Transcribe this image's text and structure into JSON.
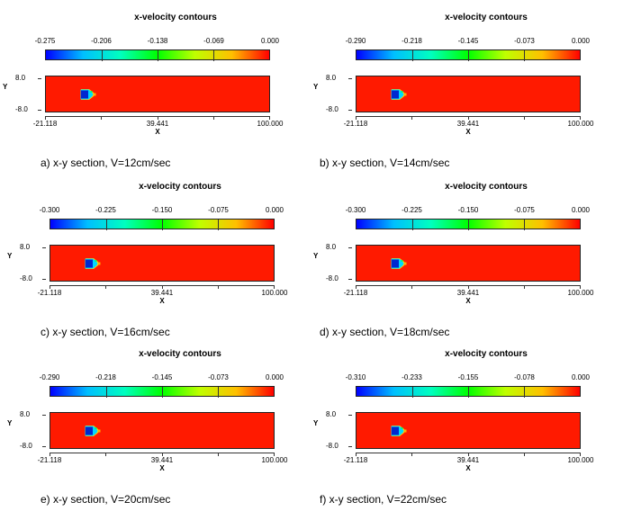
{
  "chart_data": [
    {
      "type": "contour",
      "panel_label": "a)",
      "title": "x-velocity contours",
      "colorbar_ticks": [
        "-0.275",
        "-0.206",
        "-0.138",
        "-0.069",
        "0.000"
      ],
      "xlabel": "X",
      "ylabel": "Y",
      "x_ticks": [
        "-21.118",
        "39.441",
        "100.000"
      ],
      "y_ticks": [
        "8.0",
        "-8.0"
      ],
      "caption": "a)  x-y  section,  V=12cm/sec"
    },
    {
      "type": "contour",
      "panel_label": "b)",
      "title": "x-velocity contours",
      "colorbar_ticks": [
        "-0.290",
        "-0.218",
        "-0.145",
        "-0.073",
        "0.000"
      ],
      "xlabel": "X",
      "ylabel": "Y",
      "x_ticks": [
        "-21.118",
        "39.441",
        "100.000"
      ],
      "y_ticks": [
        "8.0",
        "-8.0"
      ],
      "caption": "b)  x-y  section,  V=14cm/sec"
    },
    {
      "type": "contour",
      "panel_label": "c)",
      "title": "x-velocity contours",
      "colorbar_ticks": [
        "-0.300",
        "-0.225",
        "-0.150",
        "-0.075",
        "0.000"
      ],
      "xlabel": "X",
      "ylabel": "Y",
      "x_ticks": [
        "-21.118",
        "39.441",
        "100.000"
      ],
      "y_ticks": [
        "8.0",
        "-8.0"
      ],
      "caption": "c)  x-y  section,  V=16cm/sec"
    },
    {
      "type": "contour",
      "panel_label": "d)",
      "title": "x-velocity contours",
      "colorbar_ticks": [
        "-0.300",
        "-0.225",
        "-0.150",
        "-0.075",
        "0.000"
      ],
      "xlabel": "X",
      "ylabel": "Y",
      "x_ticks": [
        "-21.118",
        "39.441",
        "100.000"
      ],
      "y_ticks": [
        "8.0",
        "-8.0"
      ],
      "caption": "d)  x-y  section,  V=18cm/sec"
    },
    {
      "type": "contour",
      "panel_label": "e)",
      "title": "x-velocity contours",
      "colorbar_ticks": [
        "-0.290",
        "-0.218",
        "-0.145",
        "-0.073",
        "0.000"
      ],
      "xlabel": "X",
      "ylabel": "Y",
      "x_ticks": [
        "-21.118",
        "39.441",
        "100.000"
      ],
      "y_ticks": [
        "8.0",
        "-8.0"
      ],
      "caption": "e)  x-y  section,  V=20cm/sec"
    },
    {
      "type": "contour",
      "panel_label": "f)",
      "title": "x-velocity contours",
      "colorbar_ticks": [
        "-0.310",
        "-0.233",
        "-0.155",
        "-0.078",
        "0.000"
      ],
      "xlabel": "X",
      "ylabel": "Y",
      "x_ticks": [
        "-21.118",
        "39.441",
        "100.000"
      ],
      "y_ticks": [
        "8.0",
        "-8.0"
      ],
      "caption": "f)  x-y  section,  V=22cm/sec"
    }
  ],
  "colors": {
    "flow_field": "#ff1a00",
    "colormap": [
      "#0000ff",
      "#00bfff",
      "#00ffbf",
      "#00ff00",
      "#bfff00",
      "#ffbf00",
      "#ff0000"
    ]
  }
}
